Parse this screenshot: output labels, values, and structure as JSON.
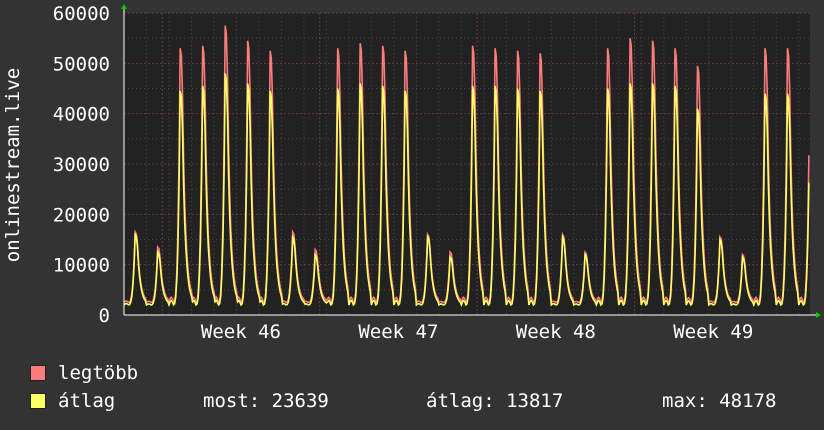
{
  "colors": {
    "background": "#333333",
    "plot_background": "#222222",
    "grid_major": "#6b3a3a",
    "grid_minor": "#4a4a4a",
    "axis": "#ffffff",
    "arrow": "#00cc00",
    "max_series": "#ff7c7c",
    "avg_series": "#ffff66"
  },
  "chart_data": {
    "type": "area",
    "ylabel": "onlinestream.live",
    "ylim": [
      0,
      60000
    ],
    "yticks": [
      "0",
      "10000",
      "20000",
      "30000",
      "40000",
      "50000",
      "60000"
    ],
    "xlabels": [
      "Week 46",
      "Week 47",
      "Week 48",
      "Week 49"
    ],
    "x_unit": "days",
    "x_range": [
      0,
      30.5
    ],
    "week_label_positions_days": [
      5.2,
      12.2,
      19.2,
      26.2
    ],
    "series": [
      {
        "name": "legtöbb",
        "color": "#ff7c7c",
        "daily_peaks": [
          16500,
          13500,
          53000,
          53500,
          57500,
          54500,
          52500,
          16500,
          13000,
          53000,
          54000,
          53500,
          52500,
          16000,
          12500,
          53500,
          53000,
          52500,
          52000,
          16000,
          12500,
          53000,
          55000,
          54500,
          53000,
          49500,
          15500,
          12000,
          53000
        ]
      },
      {
        "name": "átlag",
        "color": "#ffff66",
        "daily_peaks": [
          16000,
          12500,
          44500,
          45500,
          48000,
          46000,
          44500,
          15500,
          12000,
          45000,
          46000,
          45500,
          44500,
          15500,
          11500,
          45500,
          45500,
          45000,
          44500,
          15500,
          12000,
          45000,
          46000,
          46000,
          45500,
          41000,
          15000,
          11500,
          44000
        ]
      }
    ]
  },
  "legend": {
    "max_label": "legtöbb",
    "avg_label": "átlag",
    "now_label": "most:",
    "now_value": "23639",
    "avg_stat_label": "átlag:",
    "avg_stat_value": "13817",
    "max_stat_label": "max:",
    "max_stat_value": "48178"
  }
}
